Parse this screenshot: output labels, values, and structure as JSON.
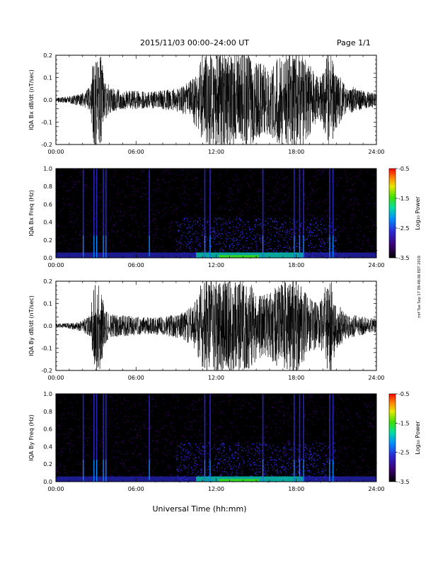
{
  "header": {
    "title": "2015/11/03  00:00–24:00 UT",
    "page": "Page 1/1"
  },
  "side_stamp": "mrf Tue Sep 17 09:48:06 EDT 2019",
  "x_axis_label": "Universal Time (hh:mm)",
  "chart_data": [
    {
      "type": "line",
      "ylabel": "IQA Bx dB/dt (nT/sec)",
      "xlim": [
        0,
        24
      ],
      "ylim": [
        -0.2,
        0.2
      ],
      "x_ticks": [
        "00:00",
        "06:00",
        "12:00",
        "18:00",
        "24:00"
      ],
      "y_ticks": [
        "-0.2",
        "-0.1",
        "0.0",
        "0.1",
        "0.2"
      ],
      "x_tick_values": [
        0,
        6,
        12,
        18,
        24
      ],
      "y_tick_values": [
        -0.2,
        -0.1,
        0.0,
        0.1,
        0.2
      ],
      "series": [
        {
          "x": [
            0.0,
            1.0,
            2.0,
            2.6,
            2.8,
            3.0,
            3.2,
            3.4,
            3.6,
            3.9,
            4.2,
            5.0,
            6.0,
            7.0,
            8.0,
            9.0,
            9.5,
            10.0,
            10.5,
            11.0,
            11.5,
            12.0,
            12.5,
            13.0,
            13.5,
            14.0,
            14.5,
            15.0,
            15.5,
            16.0,
            16.5,
            17.0,
            17.5,
            18.0,
            18.5,
            19.0,
            19.5,
            20.0,
            20.3,
            20.6,
            21.0,
            21.5,
            22.0,
            23.0,
            24.0
          ],
          "envelope": [
            0.01,
            0.015,
            0.03,
            0.06,
            0.2,
            0.2,
            0.2,
            0.2,
            0.1,
            0.07,
            0.05,
            0.04,
            0.04,
            0.035,
            0.04,
            0.05,
            0.06,
            0.08,
            0.12,
            0.2,
            0.2,
            0.2,
            0.2,
            0.2,
            0.2,
            0.2,
            0.2,
            0.18,
            0.15,
            0.15,
            0.18,
            0.2,
            0.2,
            0.2,
            0.2,
            0.15,
            0.1,
            0.12,
            0.2,
            0.2,
            0.12,
            0.08,
            0.06,
            0.04,
            0.03
          ]
        }
      ]
    },
    {
      "type": "heatmap",
      "ylabel": "IQA Bx Freq (Hz)",
      "xlim": [
        0,
        24
      ],
      "ylim": [
        0.0,
        1.0
      ],
      "x_ticks": [
        "00:00",
        "06:00",
        "12:00",
        "18:00",
        "24:00"
      ],
      "y_ticks": [
        "0.0",
        "0.2",
        "0.4",
        "0.6",
        "0.8",
        "1.0"
      ],
      "x_tick_values": [
        0,
        6,
        12,
        18,
        24
      ],
      "y_tick_values": [
        0.0,
        0.2,
        0.4,
        0.6,
        0.8,
        1.0
      ],
      "colorbar": {
        "label": "Log₁₀ Power",
        "range": [
          -3.5,
          -0.5
        ],
        "ticks": [
          "-0.5",
          "-1.5",
          "-2.5",
          "-3.5"
        ]
      },
      "spikes": [
        2.05,
        2.85,
        3.05,
        3.55,
        3.75,
        7.0,
        11.15,
        11.55,
        15.5,
        17.85,
        18.25,
        18.55,
        20.5,
        20.75
      ]
    },
    {
      "type": "line",
      "ylabel": "IQA By dB/dt (nT/sec)",
      "xlim": [
        0,
        24
      ],
      "ylim": [
        -0.2,
        0.2
      ],
      "x_ticks": [
        "00:00",
        "06:00",
        "12:00",
        "18:00",
        "24:00"
      ],
      "y_ticks": [
        "-0.2",
        "-0.1",
        "0.0",
        "0.1",
        "0.2"
      ],
      "x_tick_values": [
        0,
        6,
        12,
        18,
        24
      ],
      "y_tick_values": [
        -0.2,
        -0.1,
        0.0,
        0.1,
        0.2
      ],
      "series": [
        {
          "x": [
            0.0,
            1.0,
            2.0,
            2.6,
            2.8,
            3.0,
            3.2,
            3.4,
            3.6,
            3.9,
            4.2,
            5.0,
            6.0,
            7.0,
            8.0,
            9.0,
            9.5,
            10.0,
            10.5,
            11.0,
            11.5,
            12.0,
            12.5,
            13.0,
            13.5,
            14.0,
            14.5,
            15.0,
            15.5,
            16.0,
            16.5,
            17.0,
            17.5,
            18.0,
            18.5,
            19.0,
            19.5,
            20.0,
            20.3,
            20.6,
            21.0,
            21.5,
            22.0,
            23.0,
            24.0
          ],
          "envelope": [
            0.01,
            0.012,
            0.025,
            0.05,
            0.2,
            0.2,
            0.2,
            0.2,
            0.09,
            0.06,
            0.05,
            0.045,
            0.04,
            0.035,
            0.04,
            0.05,
            0.06,
            0.08,
            0.12,
            0.2,
            0.2,
            0.2,
            0.2,
            0.2,
            0.2,
            0.2,
            0.19,
            0.15,
            0.13,
            0.14,
            0.17,
            0.2,
            0.2,
            0.2,
            0.16,
            0.12,
            0.1,
            0.12,
            0.2,
            0.2,
            0.1,
            0.07,
            0.05,
            0.04,
            0.03
          ]
        }
      ]
    },
    {
      "type": "heatmap",
      "ylabel": "IQA By Freq (Hz)",
      "xlim": [
        0,
        24
      ],
      "ylim": [
        0.0,
        1.0
      ],
      "x_ticks": [
        "00:00",
        "06:00",
        "12:00",
        "18:00",
        "24:00"
      ],
      "y_ticks": [
        "0.0",
        "0.2",
        "0.4",
        "0.6",
        "0.8",
        "1.0"
      ],
      "x_tick_values": [
        0,
        6,
        12,
        18,
        24
      ],
      "y_tick_values": [
        0.0,
        0.2,
        0.4,
        0.6,
        0.8,
        1.0
      ],
      "colorbar": {
        "label": "Log₁₀ Power",
        "range": [
          -3.5,
          -0.5
        ],
        "ticks": [
          "-0.5",
          "-1.5",
          "-2.5",
          "-3.5"
        ]
      },
      "spikes": [
        2.05,
        2.85,
        3.05,
        3.55,
        3.75,
        7.0,
        11.15,
        11.55,
        15.5,
        17.85,
        18.25,
        18.55,
        20.5,
        20.75
      ]
    }
  ],
  "colors": {
    "trace": "#000000",
    "colormap": [
      "#000000",
      "#3b0070",
      "#2a2ad8",
      "#0090ff",
      "#00e0a0",
      "#40e000",
      "#e8e800",
      "#ff8000",
      "#ff0000"
    ]
  }
}
